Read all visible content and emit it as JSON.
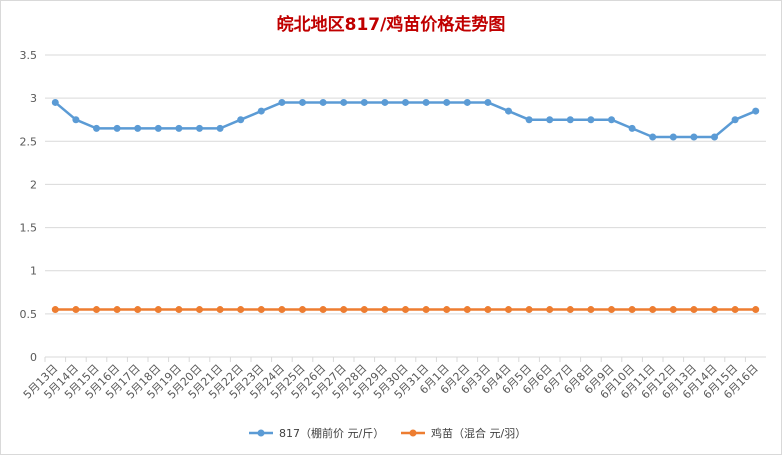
{
  "chart_data": {
    "type": "line",
    "title": "皖北地区817/鸡苗价格走势图",
    "title_color": "#c00000",
    "xlabel": "",
    "ylabel": "",
    "ylim": [
      0,
      3.5
    ],
    "y_ticks": [
      "0",
      "0.5",
      "1",
      "1.5",
      "2",
      "2.5",
      "3",
      "3.5"
    ],
    "y_tick_values": [
      0,
      0.5,
      1,
      1.5,
      2,
      2.5,
      3,
      3.5
    ],
    "grid": "horizontal",
    "legend_position": "bottom",
    "categories": [
      "5月13日",
      "5月14日",
      "5月15日",
      "5月16日",
      "5月17日",
      "5月18日",
      "5月19日",
      "5月20日",
      "5月21日",
      "5月22日",
      "5月23日",
      "5月24日",
      "5月25日",
      "5月26日",
      "5月27日",
      "5月28日",
      "5月29日",
      "5月30日",
      "5月31日",
      "6月1日",
      "6月2日",
      "6月3日",
      "6月4日",
      "6月5日",
      "6月6日",
      "6月7日",
      "6月8日",
      "6月9日",
      "6月10日",
      "6月11日",
      "6月12日",
      "6月13日",
      "6月14日",
      "6月15日",
      "6月16日"
    ],
    "series": [
      {
        "name": "817（棚前价 元/斤）",
        "color": "#5b9bd5",
        "values": [
          2.95,
          2.75,
          2.65,
          2.65,
          2.65,
          2.65,
          2.65,
          2.65,
          2.65,
          2.75,
          2.85,
          2.95,
          2.95,
          2.95,
          2.95,
          2.95,
          2.95,
          2.95,
          2.95,
          2.95,
          2.95,
          2.95,
          2.85,
          2.75,
          2.75,
          2.75,
          2.75,
          2.75,
          2.65,
          2.55,
          2.55,
          2.55,
          2.55,
          2.75,
          2.85
        ]
      },
      {
        "name": "鸡苗（混合 元/羽）",
        "color": "#ed7d31",
        "values": [
          0.55,
          0.55,
          0.55,
          0.55,
          0.55,
          0.55,
          0.55,
          0.55,
          0.55,
          0.55,
          0.55,
          0.55,
          0.55,
          0.55,
          0.55,
          0.55,
          0.55,
          0.55,
          0.55,
          0.55,
          0.55,
          0.55,
          0.55,
          0.55,
          0.55,
          0.55,
          0.55,
          0.55,
          0.55,
          0.55,
          0.55,
          0.55,
          0.55,
          0.55,
          0.55
        ]
      }
    ]
  }
}
